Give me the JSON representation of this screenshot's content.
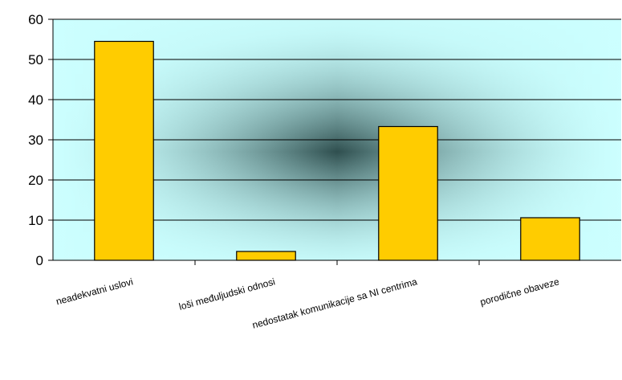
{
  "chart_data": {
    "type": "bar",
    "categories": [
      "neadekvatni uslovi",
      "loši međuljudski odnosi",
      "nedostatak komunikacije sa NI centrima",
      "porodične obaveze"
    ],
    "values": [
      54.5,
      2.2,
      33.3,
      10.6
    ],
    "title": "",
    "xlabel": "",
    "ylabel": "",
    "ylim": [
      0,
      60
    ],
    "yticks": [
      0,
      10,
      20,
      30,
      40,
      50,
      60
    ],
    "grid": true,
    "legend": "none",
    "colors": {
      "bar_fill": "#ffcc00",
      "bar_stroke": "#000000",
      "plot_bg_edge": "#ccffff",
      "plot_bg_center": "#2f4f4f",
      "gridline": "#000000"
    }
  }
}
